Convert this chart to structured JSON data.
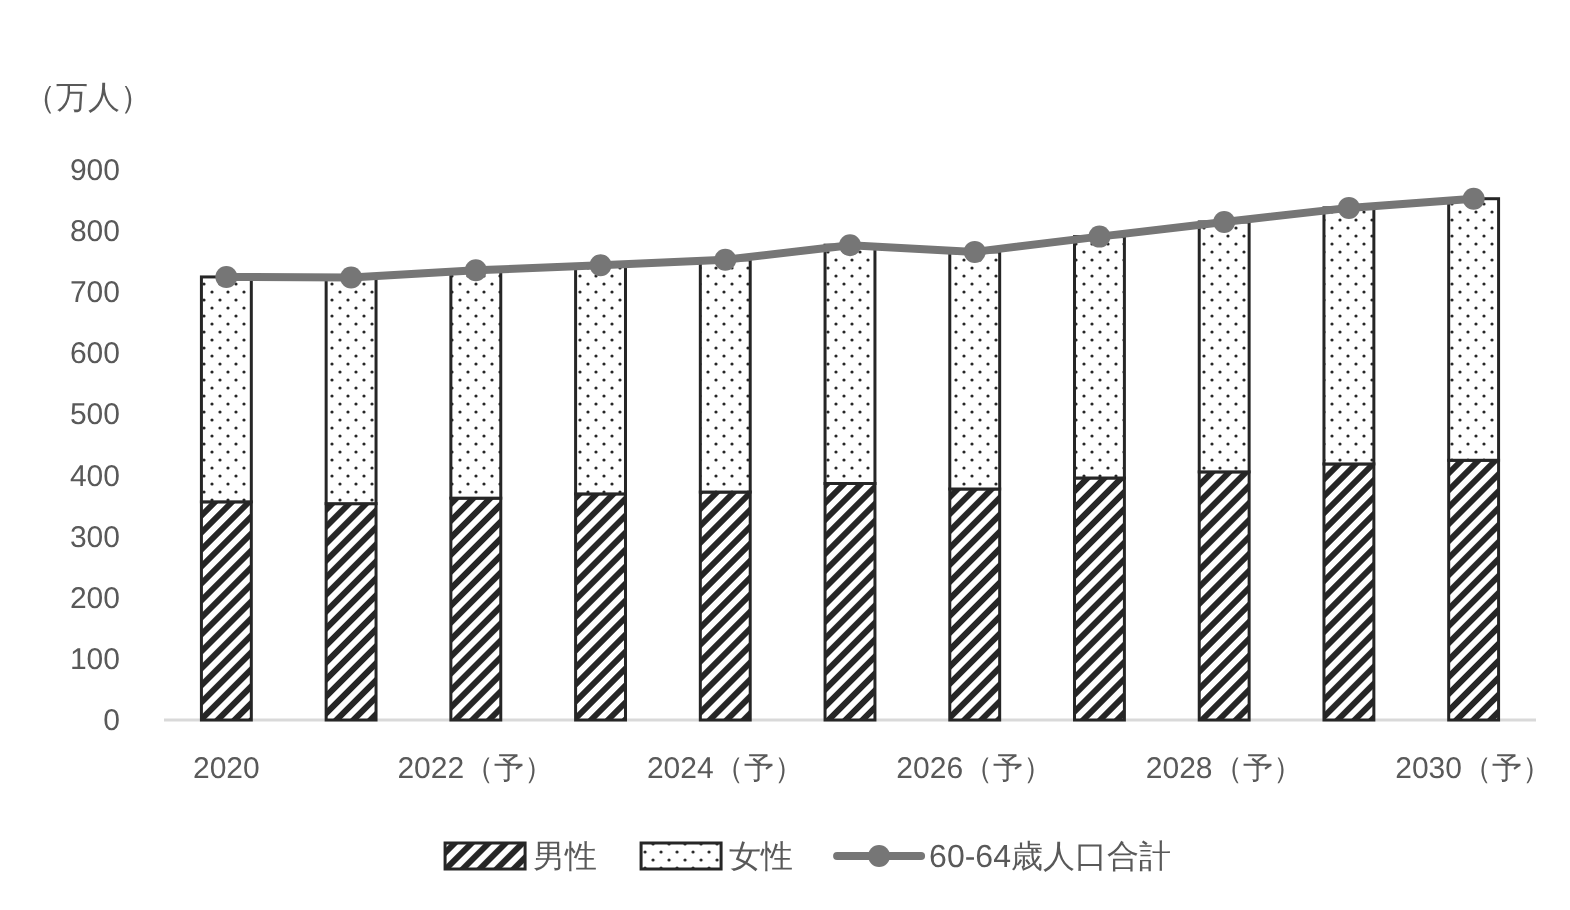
{
  "chart_data": {
    "type": "bar",
    "stacked": true,
    "ylabel": "（万人）",
    "categories": [
      "2020",
      null,
      "2022（予）",
      null,
      "2024（予）",
      null,
      "2026（予）",
      null,
      "2028（予）",
      null,
      "2030（予）"
    ],
    "series": [
      {
        "name": "男性",
        "color": "#262626",
        "values": [
          357,
          354,
          363,
          370,
          373,
          387,
          378,
          396,
          406,
          419,
          425
        ]
      },
      {
        "name": "女性",
        "color": "#262626",
        "values": [
          368,
          370,
          373,
          374,
          380,
          390,
          388,
          395,
          409,
          419,
          428
        ]
      },
      {
        "name": "60-64歳人口合計",
        "type": "line",
        "color": "#767676",
        "values": [
          725,
          724,
          736,
          744,
          753,
          777,
          766,
          791,
          815,
          838,
          853
        ]
      }
    ],
    "ylim": [
      0,
      900
    ],
    "yticks": [
      0,
      100,
      200,
      300,
      400,
      500,
      600,
      700,
      800,
      900
    ],
    "legend": "bottom",
    "marker": "circle"
  }
}
